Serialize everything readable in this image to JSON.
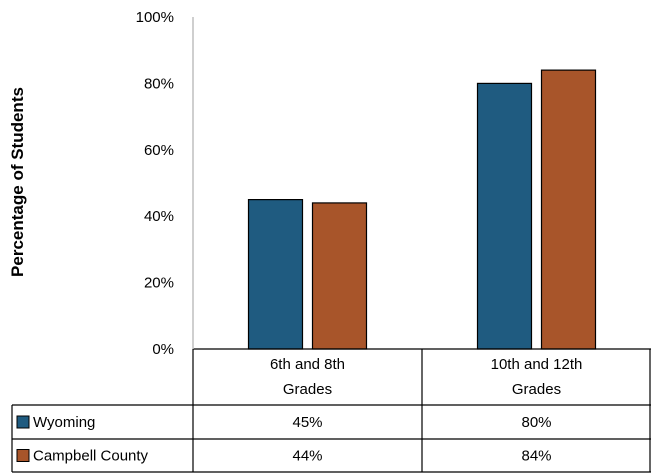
{
  "chart_data": {
    "type": "bar",
    "ylabel": "Percentage of Students",
    "ylim": [
      0,
      100
    ],
    "yticks": [
      "0%",
      "20%",
      "40%",
      "60%",
      "80%",
      "100%"
    ],
    "categories": [
      [
        "6th and 8th",
        "Grades"
      ],
      [
        "10th and 12th",
        "Grades"
      ]
    ],
    "series": [
      {
        "name": "Wyoming",
        "values": [
          45,
          80
        ],
        "labels": [
          "45%",
          "80%"
        ],
        "color": "#1f5b80"
      },
      {
        "name": "Campbell County",
        "values": [
          44,
          84
        ],
        "labels": [
          "44%",
          "84%"
        ],
        "color": "#a8552a"
      }
    ],
    "grid": false,
    "legend": "data-table"
  }
}
